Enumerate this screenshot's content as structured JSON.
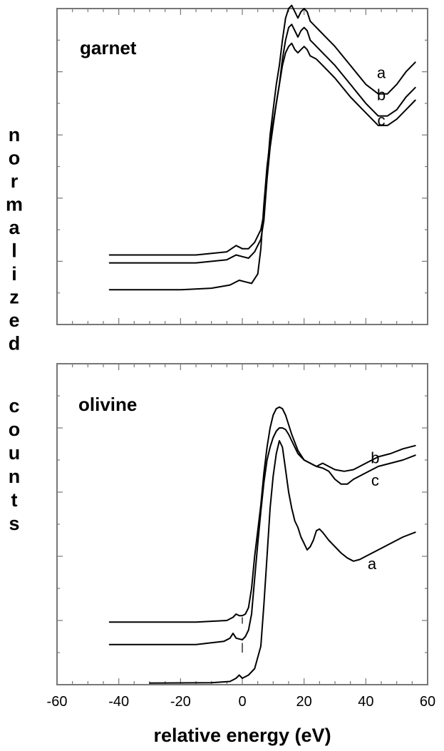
{
  "chart_data": {
    "type": "line",
    "xlabel": "relative energy (eV)",
    "ylabel_letters": [
      "n",
      "o",
      "r",
      "m",
      "a",
      "l",
      "i",
      "z",
      "e",
      "d",
      "c",
      "o",
      "u",
      "n",
      "t",
      "s"
    ],
    "xlim": [
      -60,
      60
    ],
    "x_ticks": [
      "-60",
      "-40",
      "-20",
      "0",
      "20",
      "40",
      "60"
    ],
    "panels": [
      {
        "label": "garnet",
        "series": [
          {
            "name": "a",
            "points": [
              [
                -43,
                0.22
              ],
              [
                -15,
                0.22
              ],
              [
                -5,
                0.23
              ],
              [
                -2,
                0.25
              ],
              [
                0,
                0.24
              ],
              [
                2,
                0.24
              ],
              [
                4,
                0.26
              ],
              [
                6,
                0.3
              ],
              [
                7,
                0.35
              ],
              [
                8,
                0.48
              ],
              [
                9,
                0.6
              ],
              [
                10,
                0.68
              ],
              [
                11,
                0.76
              ],
              [
                12,
                0.82
              ],
              [
                13,
                0.9
              ],
              [
                14,
                0.97
              ],
              [
                15,
                1.0
              ],
              [
                16,
                1.01
              ],
              [
                17,
                0.99
              ],
              [
                18,
                0.97
              ],
              [
                19,
                0.99
              ],
              [
                20,
                1.0
              ],
              [
                21,
                0.99
              ],
              [
                22,
                0.96
              ],
              [
                23,
                0.95
              ],
              [
                25,
                0.93
              ],
              [
                27,
                0.91
              ],
              [
                30,
                0.88
              ],
              [
                35,
                0.82
              ],
              [
                40,
                0.76
              ],
              [
                44,
                0.73
              ],
              [
                47,
                0.73
              ],
              [
                50,
                0.76
              ],
              [
                53,
                0.8
              ],
              [
                56,
                0.83
              ]
            ]
          },
          {
            "name": "b",
            "points": [
              [
                -43,
                0.195
              ],
              [
                -15,
                0.195
              ],
              [
                -5,
                0.205
              ],
              [
                -2,
                0.22
              ],
              [
                0,
                0.215
              ],
              [
                2,
                0.21
              ],
              [
                4,
                0.23
              ],
              [
                6,
                0.27
              ],
              [
                7,
                0.33
              ],
              [
                8,
                0.46
              ],
              [
                9,
                0.56
              ],
              [
                10,
                0.63
              ],
              [
                11,
                0.7
              ],
              [
                12,
                0.76
              ],
              [
                13,
                0.84
              ],
              [
                14,
                0.9
              ],
              [
                15,
                0.94
              ],
              [
                16,
                0.95
              ],
              [
                17,
                0.93
              ],
              [
                18,
                0.91
              ],
              [
                19,
                0.93
              ],
              [
                20,
                0.94
              ],
              [
                21,
                0.93
              ],
              [
                22,
                0.9
              ],
              [
                23,
                0.89
              ],
              [
                25,
                0.87
              ],
              [
                27,
                0.85
              ],
              [
                30,
                0.82
              ],
              [
                35,
                0.76
              ],
              [
                40,
                0.7
              ],
              [
                44,
                0.66
              ],
              [
                47,
                0.66
              ],
              [
                50,
                0.68
              ],
              [
                53,
                0.72
              ],
              [
                56,
                0.75
              ]
            ]
          },
          {
            "name": "c",
            "points": [
              [
                -43,
                0.11
              ],
              [
                -20,
                0.11
              ],
              [
                -10,
                0.115
              ],
              [
                -4,
                0.125
              ],
              [
                -1,
                0.14
              ],
              [
                1,
                0.135
              ],
              [
                3,
                0.13
              ],
              [
                5,
                0.16
              ],
              [
                6,
                0.24
              ],
              [
                7,
                0.38
              ],
              [
                8,
                0.5
              ],
              [
                9,
                0.58
              ],
              [
                10,
                0.64
              ],
              [
                11,
                0.7
              ],
              [
                12,
                0.76
              ],
              [
                13,
                0.82
              ],
              [
                14,
                0.86
              ],
              [
                15,
                0.88
              ],
              [
                16,
                0.89
              ],
              [
                17,
                0.87
              ],
              [
                18,
                0.86
              ],
              [
                19,
                0.87
              ],
              [
                20,
                0.88
              ],
              [
                21,
                0.87
              ],
              [
                22,
                0.85
              ],
              [
                24,
                0.84
              ],
              [
                26,
                0.82
              ],
              [
                30,
                0.78
              ],
              [
                35,
                0.72
              ],
              [
                40,
                0.67
              ],
              [
                44,
                0.63
              ],
              [
                47,
                0.63
              ],
              [
                50,
                0.65
              ],
              [
                53,
                0.68
              ],
              [
                56,
                0.71
              ]
            ]
          }
        ],
        "curve_labels": [
          {
            "text": "a",
            "x": 45,
            "y": 0.78
          },
          {
            "text": "b",
            "x": 45,
            "y": 0.71
          },
          {
            "text": "c",
            "x": 45,
            "y": 0.63
          }
        ]
      },
      {
        "label": "olivine",
        "series": [
          {
            "name": "b",
            "points": [
              [
                -43,
                0.195
              ],
              [
                -15,
                0.195
              ],
              [
                -5,
                0.2
              ],
              [
                -3,
                0.21
              ],
              [
                -2,
                0.22
              ],
              [
                -1,
                0.215
              ],
              [
                0,
                0.215
              ],
              [
                1,
                0.22
              ],
              [
                2,
                0.24
              ],
              [
                3,
                0.3
              ],
              [
                4,
                0.4
              ],
              [
                5,
                0.48
              ],
              [
                6,
                0.56
              ],
              [
                7,
                0.66
              ],
              [
                8,
                0.74
              ],
              [
                9,
                0.8
              ],
              [
                10,
                0.84
              ],
              [
                11,
                0.86
              ],
              [
                12,
                0.865
              ],
              [
                13,
                0.86
              ],
              [
                14,
                0.84
              ],
              [
                15,
                0.81
              ],
              [
                16,
                0.78
              ],
              [
                18,
                0.73
              ],
              [
                20,
                0.7
              ],
              [
                22,
                0.69
              ],
              [
                24,
                0.68
              ],
              [
                26,
                0.69
              ],
              [
                28,
                0.68
              ],
              [
                30,
                0.67
              ],
              [
                33,
                0.665
              ],
              [
                36,
                0.67
              ],
              [
                40,
                0.69
              ],
              [
                44,
                0.71
              ],
              [
                48,
                0.72
              ],
              [
                52,
                0.735
              ],
              [
                56,
                0.745
              ]
            ]
          },
          {
            "name": "c",
            "points": [
              [
                -43,
                0.125
              ],
              [
                -15,
                0.125
              ],
              [
                -6,
                0.135
              ],
              [
                -4,
                0.145
              ],
              [
                -3,
                0.16
              ],
              [
                -2,
                0.145
              ],
              [
                0,
                0.14
              ],
              [
                1,
                0.15
              ],
              [
                2,
                0.17
              ],
              [
                3,
                0.22
              ],
              [
                4,
                0.33
              ],
              [
                5,
                0.44
              ],
              [
                6,
                0.54
              ],
              [
                7,
                0.63
              ],
              [
                8,
                0.7
              ],
              [
                9,
                0.74
              ],
              [
                10,
                0.77
              ],
              [
                11,
                0.79
              ],
              [
                12,
                0.8
              ],
              [
                13,
                0.8
              ],
              [
                14,
                0.795
              ],
              [
                15,
                0.78
              ],
              [
                16,
                0.76
              ],
              [
                18,
                0.72
              ],
              [
                20,
                0.7
              ],
              [
                22,
                0.69
              ],
              [
                24,
                0.68
              ],
              [
                26,
                0.675
              ],
              [
                28,
                0.665
              ],
              [
                30,
                0.64
              ],
              [
                32,
                0.625
              ],
              [
                34,
                0.625
              ],
              [
                36,
                0.64
              ],
              [
                40,
                0.66
              ],
              [
                44,
                0.68
              ],
              [
                48,
                0.69
              ],
              [
                52,
                0.7
              ],
              [
                56,
                0.715
              ]
            ]
          },
          {
            "name": "a",
            "points": [
              [
                -30,
                0.005
              ],
              [
                -10,
                0.006
              ],
              [
                -4,
                0.01
              ],
              [
                -2,
                0.02
              ],
              [
                -1,
                0.03
              ],
              [
                0,
                0.02
              ],
              [
                2,
                0.03
              ],
              [
                4,
                0.05
              ],
              [
                6,
                0.12
              ],
              [
                7,
                0.25
              ],
              [
                8,
                0.4
              ],
              [
                9,
                0.55
              ],
              [
                10,
                0.65
              ],
              [
                11,
                0.72
              ],
              [
                12,
                0.76
              ],
              [
                13,
                0.74
              ],
              [
                14,
                0.67
              ],
              [
                15,
                0.6
              ],
              [
                16,
                0.55
              ],
              [
                17,
                0.51
              ],
              [
                18,
                0.49
              ],
              [
                19,
                0.46
              ],
              [
                20,
                0.44
              ],
              [
                21,
                0.42
              ],
              [
                22,
                0.43
              ],
              [
                23,
                0.45
              ],
              [
                24,
                0.48
              ],
              [
                25,
                0.485
              ],
              [
                26,
                0.475
              ],
              [
                28,
                0.45
              ],
              [
                30,
                0.43
              ],
              [
                32,
                0.41
              ],
              [
                34,
                0.395
              ],
              [
                36,
                0.385
              ],
              [
                38,
                0.39
              ],
              [
                40,
                0.4
              ],
              [
                44,
                0.42
              ],
              [
                48,
                0.44
              ],
              [
                52,
                0.46
              ],
              [
                56,
                0.475
              ]
            ]
          }
        ],
        "curve_labels": [
          {
            "text": "b",
            "x": 43,
            "y": 0.69
          },
          {
            "text": "c",
            "x": 43,
            "y": 0.62
          },
          {
            "text": "a",
            "x": 42,
            "y": 0.36
          }
        ]
      }
    ],
    "vertical_markers": [
      {
        "panel": 1,
        "x": 0,
        "y_from": 0.19,
        "y_to": 0.21
      },
      {
        "panel": 1,
        "x": 0,
        "y_from": 0.1,
        "y_to": 0.13
      }
    ]
  }
}
